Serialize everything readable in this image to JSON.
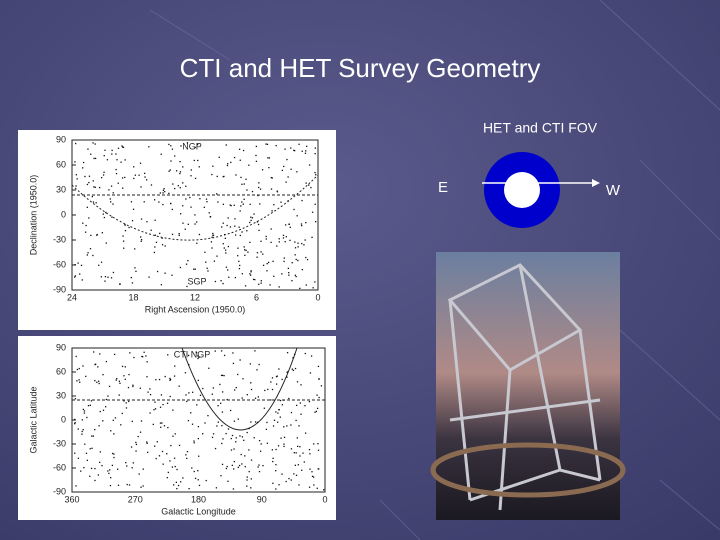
{
  "slide": {
    "title": "CTI and HET Survey Geometry",
    "panels": [
      {
        "y_label": "Declination (1950.0)",
        "x_label": "Right Ascension (1950.0)",
        "y_ticks": [
          90,
          60,
          30,
          0,
          -30,
          -60,
          -90
        ],
        "x_ticks": [
          24,
          18,
          12,
          6,
          0
        ],
        "annotations": [
          "NGP",
          "SGP"
        ]
      },
      {
        "y_label": "Galactic Latitude",
        "x_label": "Galactic Longitude",
        "y_ticks": [
          90,
          60,
          30,
          0,
          -30,
          -60,
          -90
        ],
        "x_ticks": [
          360,
          270,
          180,
          90,
          0
        ],
        "annotations": [
          "CTI NGP"
        ]
      }
    ],
    "fov": {
      "title": "HET and CTI FOV",
      "east": "E",
      "west": "W"
    }
  }
}
